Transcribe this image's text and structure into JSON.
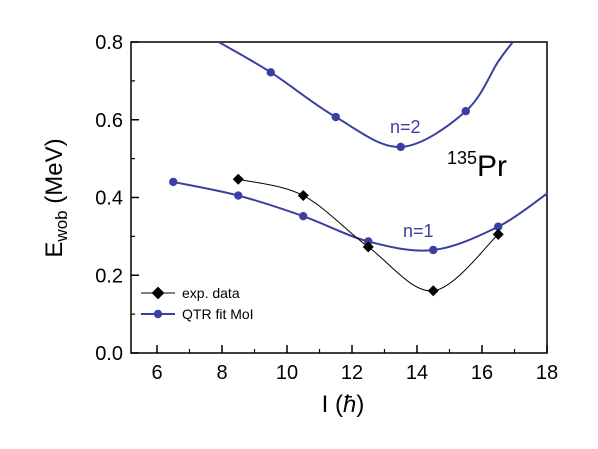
{
  "chart_data": {
    "type": "line",
    "xlabel_main": "I (",
    "xlabel_symbol": "ħ",
    "xlabel_end": ")",
    "ylabel_main": "E",
    "ylabel_sub": "wob",
    "ylabel_unit": " (MeV)",
    "xlim": [
      5.2,
      18
    ],
    "ylim": [
      0.0,
      0.8
    ],
    "xticks": [
      6,
      8,
      10,
      12,
      14,
      16,
      18
    ],
    "yticks": [
      "0.0",
      "0.2",
      "0.4",
      "0.6",
      "0.8"
    ],
    "nucleus_mass": "135",
    "nucleus_symbol": "Pr",
    "curve_labels": {
      "n2": "n=2",
      "n1": "n=1"
    },
    "colors": {
      "qtr": "#3a3fa0",
      "exp": "#000000"
    },
    "legend_placement": "bottom-left",
    "series": [
      {
        "name": "exp. data",
        "marker": "diamond",
        "x": [
          8.5,
          10.5,
          12.5,
          14.5,
          16.5
        ],
        "y": [
          0.447,
          0.405,
          0.273,
          0.16,
          0.305
        ]
      },
      {
        "name": "QTR fit MoI",
        "marker": "circle",
        "x": [
          6.5,
          8.5,
          10.5,
          12.5,
          14.5,
          16.5
        ],
        "y": [
          0.44,
          0.405,
          0.352,
          0.287,
          0.265,
          0.325
        ]
      },
      {
        "marker": "circle",
        "x": [
          9.5,
          11.5,
          13.5,
          15.5
        ],
        "y": [
          0.722,
          0.607,
          0.53,
          0.622
        ]
      }
    ]
  }
}
